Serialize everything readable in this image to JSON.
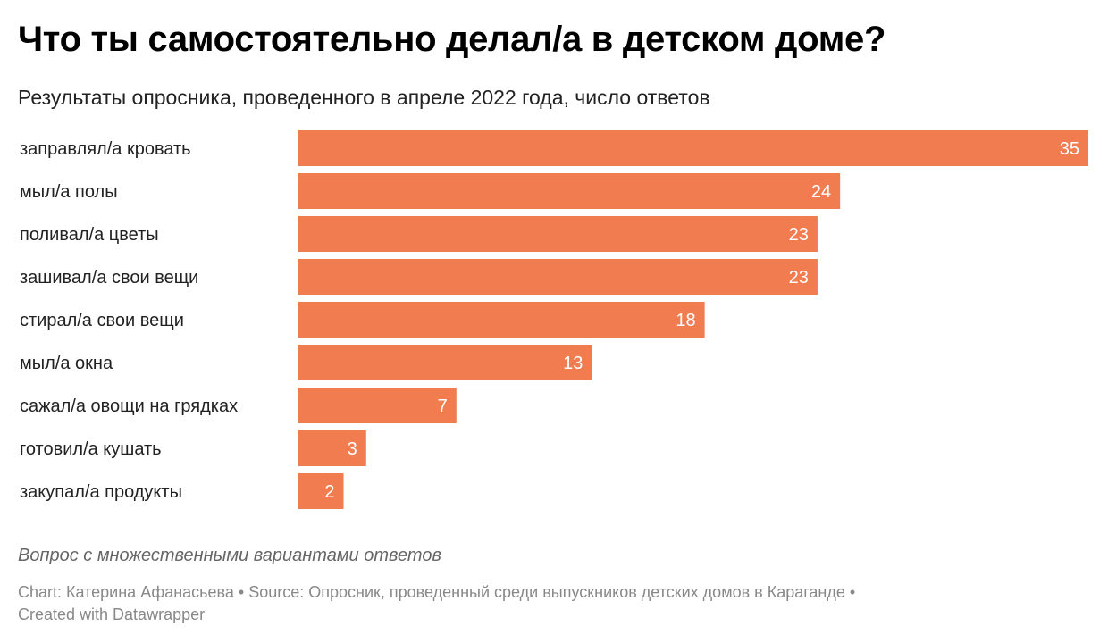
{
  "header": {
    "title": "Что ты самостоятельно делал/а в детском доме?",
    "subtitle": "Результаты опросника, проведенного в апреле 2022 года, число ответов"
  },
  "footer": {
    "note": "Вопрос с множественными вариантами ответов",
    "credits_line1": "Chart: Катерина Афанасьева • Source: Опросник, проведенный среди выпускников детских домов в Караганде •",
    "credits_line2": "Created with Datawrapper"
  },
  "colors": {
    "bar": "#f07c50",
    "label": "#222222",
    "value_label": "#ffffff"
  },
  "chart_data": {
    "type": "bar",
    "orientation": "horizontal",
    "title": "Что ты самостоятельно делал/а в детском доме?",
    "subtitle": "Результаты опросника, проведенного в апреле 2022 года, число ответов",
    "categories": [
      "заправлял/а кровать",
      "мыл/а полы",
      "поливал/а цветы",
      "зашивал/а свои вещи",
      "стирал/а свои вещи",
      "мыл/а окна",
      "сажал/а овощи на грядках",
      "готовил/а кушать",
      "закупал/а продукты"
    ],
    "values": [
      35,
      24,
      23,
      23,
      18,
      13,
      7,
      3,
      2
    ],
    "xlim": [
      0,
      35
    ],
    "grid": false,
    "legend": "none",
    "data_labels": "inside-end"
  }
}
